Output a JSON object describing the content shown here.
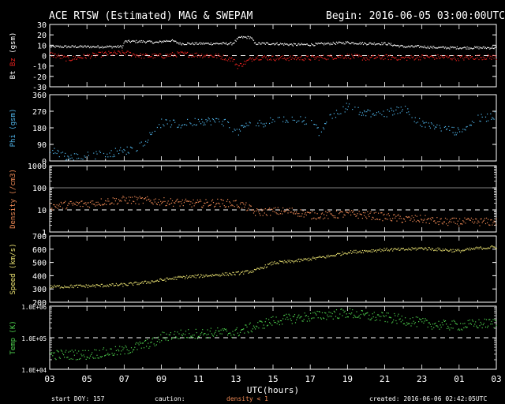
{
  "header": {
    "title": "ACE RTSW (Estimated) MAG & SWEPAM",
    "begin": "Begin: 2016-06-05 03:00:00UTC"
  },
  "footer": {
    "start_doy": "start DOY: 157",
    "caution_label": "caution:",
    "caution_value": "density < 1",
    "created": "created: 2016-06-06 02:42:05UTC"
  },
  "colors": {
    "bt": "#ffffff",
    "bz": "#e8221f",
    "phi": "#4fb3e8",
    "density": "#f08a55",
    "speed": "#e8e070",
    "temp": "#4ed24e",
    "caution": "#f08a55"
  },
  "chart_data": [
    {
      "type": "scatter",
      "panel": "mag",
      "ylabel_parts": [
        "Bt",
        "Bz",
        "(gsm)"
      ],
      "ylim": [
        -30,
        30
      ],
      "yticks": [
        "30",
        "20",
        "10",
        "0",
        "-10",
        "-20",
        "-30"
      ],
      "reference_line": 0,
      "series": [
        {
          "name": "Bt",
          "x": [
            3,
            4,
            5,
            6,
            6.9,
            7,
            8,
            8.8,
            9,
            9.5,
            10,
            11,
            12,
            12.8,
            13.2,
            13.8,
            14,
            15,
            16,
            17,
            18,
            19,
            20,
            21,
            22,
            23,
            24,
            25,
            25.5,
            26,
            27
          ],
          "y": [
            9,
            9,
            9,
            9,
            9,
            14,
            14,
            13,
            14,
            15,
            12,
            12,
            12,
            12,
            18,
            18,
            12,
            12,
            11,
            11,
            12,
            13,
            12,
            12,
            9,
            9,
            8,
            8,
            8,
            8,
            8
          ]
        },
        {
          "name": "Bz",
          "x": [
            3,
            4,
            5,
            6,
            7,
            8,
            9,
            10,
            11,
            12,
            12.8,
            13.1,
            13.5,
            14,
            15,
            16,
            17,
            18,
            19,
            20,
            21,
            22,
            23,
            24,
            25,
            26,
            27
          ],
          "y": [
            2,
            -3,
            0,
            2,
            3,
            0,
            0,
            2,
            1,
            0,
            -3,
            -10,
            -6,
            -1,
            -2,
            -2,
            -2,
            -1,
            0,
            -2,
            -1,
            -2,
            -1,
            -1,
            -2,
            -1,
            -1
          ]
        }
      ]
    },
    {
      "type": "scatter",
      "panel": "phi",
      "ylabel": "Phi (gsm)",
      "ylim": [
        0,
        360
      ],
      "yticks": [
        "360",
        "270",
        "180",
        "90",
        "0"
      ],
      "series": [
        {
          "name": "Phi",
          "x": [
            3,
            4,
            5,
            6,
            7,
            7.5,
            8,
            8.8,
            9,
            10,
            11,
            12,
            12.5,
            13,
            13.5,
            14,
            15,
            16,
            17,
            17.5,
            18,
            19,
            20,
            21,
            22,
            23,
            24,
            25,
            26,
            27
          ],
          "y": [
            60,
            20,
            30,
            40,
            60,
            60,
            100,
            190,
            210,
            200,
            220,
            220,
            210,
            150,
            200,
            200,
            220,
            230,
            220,
            150,
            230,
            300,
            260,
            260,
            290,
            200,
            180,
            160,
            230,
            250
          ]
        }
      ]
    },
    {
      "type": "scatter",
      "panel": "density",
      "ylabel": "Density (/cm3)",
      "yscale": "log",
      "ylim": [
        1,
        1000
      ],
      "yticks": [
        "1000",
        "100",
        "10",
        "1"
      ],
      "reference_lines": [
        1,
        10
      ],
      "series": [
        {
          "name": "Density",
          "x": [
            3,
            4,
            5,
            6,
            7,
            8,
            9,
            10,
            11,
            12,
            13,
            13.5,
            14,
            15,
            16,
            17,
            18,
            19,
            20,
            21,
            22,
            23,
            24,
            25,
            26,
            27
          ],
          "y": [
            15,
            18,
            20,
            25,
            30,
            28,
            25,
            22,
            20,
            22,
            20,
            15,
            8,
            9,
            9,
            6,
            6,
            7,
            6,
            5,
            4,
            4,
            3,
            3,
            3,
            3
          ]
        }
      ]
    },
    {
      "type": "scatter",
      "panel": "speed",
      "ylabel": "Speed (km/s)",
      "ylim": [
        200,
        700
      ],
      "yticks": [
        "700",
        "600",
        "500",
        "400",
        "300",
        "200"
      ],
      "series": [
        {
          "name": "Speed",
          "x": [
            3,
            5,
            7,
            8,
            9,
            10,
            11,
            12,
            13,
            14,
            15,
            16,
            17,
            18,
            19,
            20,
            21,
            22,
            23,
            24,
            25,
            26,
            27
          ],
          "y": [
            320,
            325,
            335,
            350,
            370,
            390,
            400,
            410,
            420,
            440,
            500,
            510,
            530,
            550,
            580,
            590,
            600,
            600,
            610,
            600,
            590,
            610,
            620
          ]
        }
      ]
    },
    {
      "type": "scatter",
      "panel": "temp",
      "ylabel": "Temp (K)",
      "yscale": "log",
      "ylim": [
        10000,
        1000000
      ],
      "yticks": [
        "1.0E+06",
        "1.0E+05",
        "1.0E+04"
      ],
      "reference_line": 100000,
      "series": [
        {
          "name": "Temp",
          "x": [
            3,
            5,
            7,
            8,
            8.8,
            9,
            10,
            11,
            12,
            13,
            14,
            15,
            16,
            17,
            18,
            19,
            20,
            21,
            22,
            23,
            24,
            25,
            26,
            27
          ],
          "y": [
            30000,
            30000,
            40000,
            60000,
            80000,
            110000,
            130000,
            140000,
            150000,
            150000,
            230000,
            350000,
            420000,
            480000,
            560000,
            620000,
            500000,
            450000,
            380000,
            300000,
            260000,
            250000,
            280000,
            300000
          ]
        }
      ]
    }
  ],
  "xaxis": {
    "label": "UTC(hours)",
    "range": [
      3,
      27
    ],
    "ticks": [
      "03",
      "05",
      "07",
      "09",
      "11",
      "13",
      "15",
      "17",
      "19",
      "21",
      "23",
      "01",
      "03"
    ]
  }
}
